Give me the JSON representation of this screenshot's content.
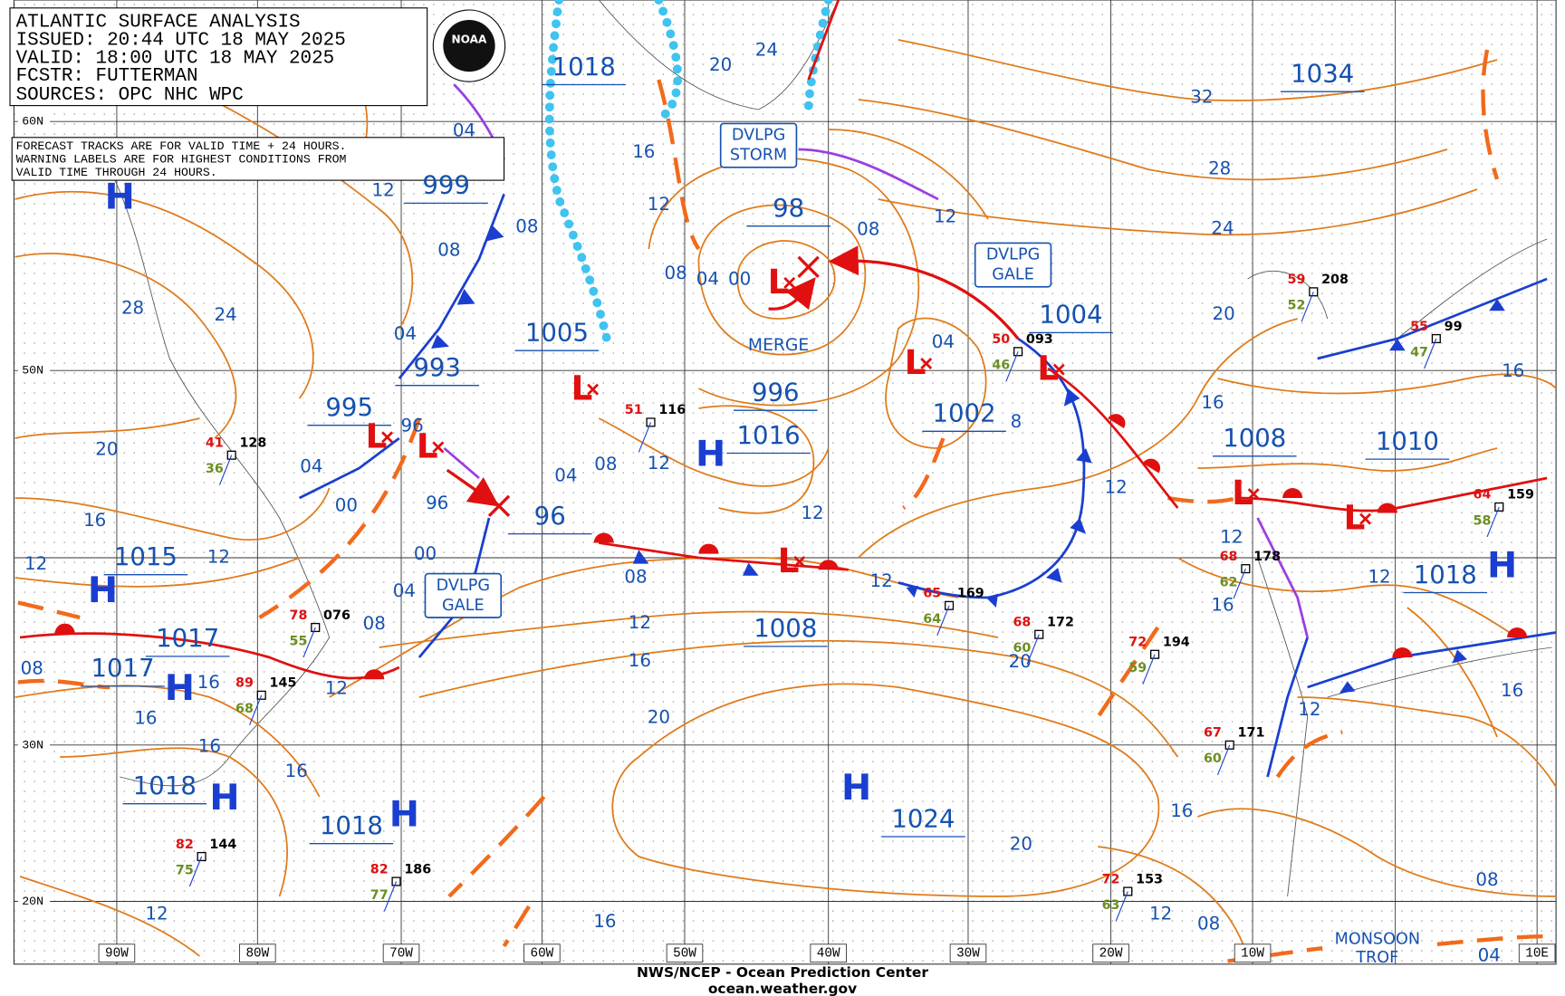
{
  "header": {
    "lines": [
      "ATLANTIC SURFACE ANALYSIS",
      "ISSUED: 20:44 UTC 18 MAY 2025",
      "VALID:  18:00 UTC 18 MAY 2025",
      "FCSTR:  FUTTERMAN",
      "SOURCES: OPC NHC WPC"
    ]
  },
  "note": {
    "lines": [
      "FORECAST TRACKS ARE FOR VALID TIME + 24 HOURS.",
      "WARNING LABELS ARE FOR HIGHEST CONDITIONS FROM",
      "VALID TIME THROUGH 24 HOURS."
    ]
  },
  "logo_text": "NOAA",
  "latitude_labels": [
    "60N",
    "50N",
    "30N",
    "20N"
  ],
  "longitude_labels": [
    "90W",
    "80W",
    "70W",
    "60W",
    "50W",
    "40W",
    "30W",
    "20W",
    "10W",
    "10E"
  ],
  "pressure_labels": [
    "1018",
    "1034",
    "999",
    "98",
    "1005",
    "993",
    "995",
    "996",
    "1016",
    "1002",
    "1004",
    "1008",
    "1010",
    "96",
    "1015",
    "1017",
    "1017",
    "1008",
    "1018",
    "1018",
    "1018",
    "1024"
  ],
  "symbols": {
    "high": "H",
    "low": "L"
  },
  "isobar_labels": [
    "04",
    "12",
    "08",
    "28",
    "24",
    "04",
    "08",
    "16",
    "12",
    "08",
    "04",
    "00",
    "20",
    "24",
    "32",
    "28",
    "24",
    "20",
    "16",
    "12",
    "08",
    "04",
    "8",
    "12",
    "12",
    "12",
    "16",
    "16",
    "16",
    "12",
    "20",
    "16",
    "12",
    "12",
    "04",
    "00",
    "96",
    "96",
    "00",
    "04",
    "08",
    "12",
    "04",
    "08",
    "12",
    "12",
    "08",
    "12",
    "16",
    "20",
    "12",
    "20",
    "16",
    "16",
    "16",
    "16",
    "08",
    "12",
    "16",
    "20",
    "16",
    "12",
    "08",
    "08",
    "04"
  ],
  "feature_labels": [
    {
      "lines": [
        "DVLPG",
        "STORM"
      ]
    },
    {
      "lines": [
        "DVLPG",
        "GALE"
      ]
    },
    {
      "lines": [
        "DVLPG",
        "GALE"
      ]
    }
  ],
  "annotations": {
    "merge": "MERGE",
    "monsoon_trough": [
      "MONSOON",
      "TROF"
    ]
  },
  "stations": [
    {
      "temp": "41",
      "pressure": "128",
      "dew": "36"
    },
    {
      "temp": "78",
      "pressure": "076",
      "dew": "55"
    },
    {
      "temp": "89",
      "pressure": "145",
      "dew": "68"
    },
    {
      "temp": "82",
      "pressure": "144",
      "dew": "75"
    },
    {
      "temp": "82",
      "pressure": "186",
      "dew": "77"
    },
    {
      "temp": "51",
      "pressure": "116"
    },
    {
      "temp": "65",
      "pressure": "169",
      "dew": "64"
    },
    {
      "temp": "68",
      "pressure": "172",
      "dew": "60"
    },
    {
      "temp": "72",
      "pressure": "194",
      "dew": "59"
    },
    {
      "temp": "68",
      "pressure": "178",
      "dew": "62"
    },
    {
      "temp": "67",
      "pressure": "171",
      "dew": "60"
    },
    {
      "temp": "72",
      "pressure": "153",
      "dew": "63"
    },
    {
      "temp": "59",
      "pressure": "208",
      "dew": "52"
    },
    {
      "temp": "55",
      "pressure": "99",
      "dew": "47"
    },
    {
      "temp": "50",
      "pressure": "093",
      "dew": "46"
    },
    {
      "temp": "64",
      "pressure": "159",
      "dew": "58"
    }
  ],
  "footer": {
    "agency": "NWS/NCEP - Ocean Prediction Center",
    "website": "ocean.weather.gov"
  }
}
